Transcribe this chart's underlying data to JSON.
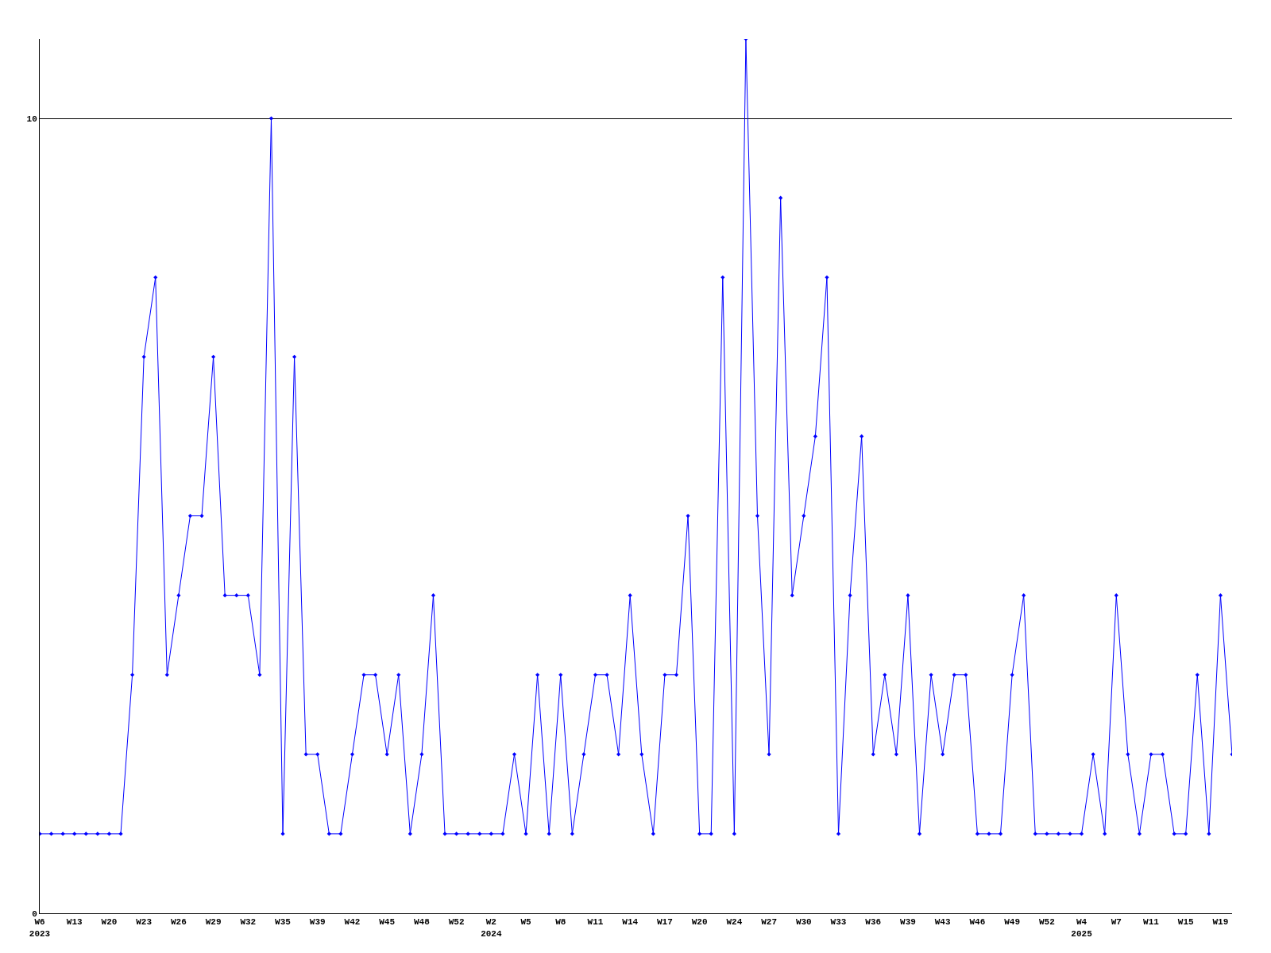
{
  "chart_data": {
    "type": "line",
    "categories": [
      "W6\n2023",
      null,
      null,
      "W13",
      null,
      null,
      "W20",
      null,
      null,
      "W23",
      null,
      null,
      "W26",
      null,
      null,
      "W29",
      null,
      null,
      "W32",
      null,
      null,
      "W35",
      null,
      null,
      "W39",
      null,
      null,
      "W42",
      null,
      null,
      "W45",
      null,
      null,
      "W48",
      null,
      null,
      "W52",
      null,
      null,
      "W2\n2024",
      null,
      null,
      "W5",
      null,
      null,
      "W8",
      null,
      null,
      "W11",
      null,
      null,
      "W14",
      null,
      null,
      "W17",
      null,
      null,
      "W20",
      null,
      null,
      "W24",
      null,
      null,
      "W27",
      null,
      null,
      "W30",
      null,
      null,
      "W33",
      null,
      null,
      "W36",
      null,
      null,
      "W39",
      null,
      null,
      "W43",
      null,
      null,
      "W46",
      null,
      null,
      "W49",
      null,
      null,
      "W52",
      null,
      null,
      "W4\n2025",
      null,
      null,
      "W7",
      null,
      null,
      "W11",
      null,
      null,
      "W15",
      null,
      null,
      "W19",
      null
    ],
    "series": [
      {
        "color": "#0000ff",
        "values": [
          1,
          1,
          1,
          1,
          1,
          1,
          1,
          1,
          3,
          7,
          8,
          3,
          4,
          5,
          5,
          7,
          4,
          4,
          4,
          3,
          10,
          1,
          7,
          2,
          2,
          1,
          1,
          2,
          3,
          3,
          2,
          3,
          1,
          2,
          4,
          1,
          1,
          1,
          1,
          1,
          1,
          2,
          1,
          3,
          1,
          3,
          1,
          2,
          3,
          3,
          2,
          4,
          2,
          1,
          3,
          3,
          5,
          1,
          1,
          8,
          1,
          11,
          5,
          2,
          9,
          4,
          5,
          6,
          8,
          1,
          4,
          6,
          2,
          3,
          2,
          4,
          1,
          3,
          2,
          3,
          3,
          1,
          1,
          1,
          3,
          4,
          1,
          1,
          1,
          1,
          1,
          2,
          1,
          4,
          2,
          1,
          2,
          2,
          1,
          1,
          3,
          1,
          4,
          2
        ]
      }
    ],
    "ylim": [
      0,
      11
    ],
    "yticks": [
      0,
      10
    ],
    "grid": "y",
    "marker": "diamond",
    "line_style": "solid"
  }
}
